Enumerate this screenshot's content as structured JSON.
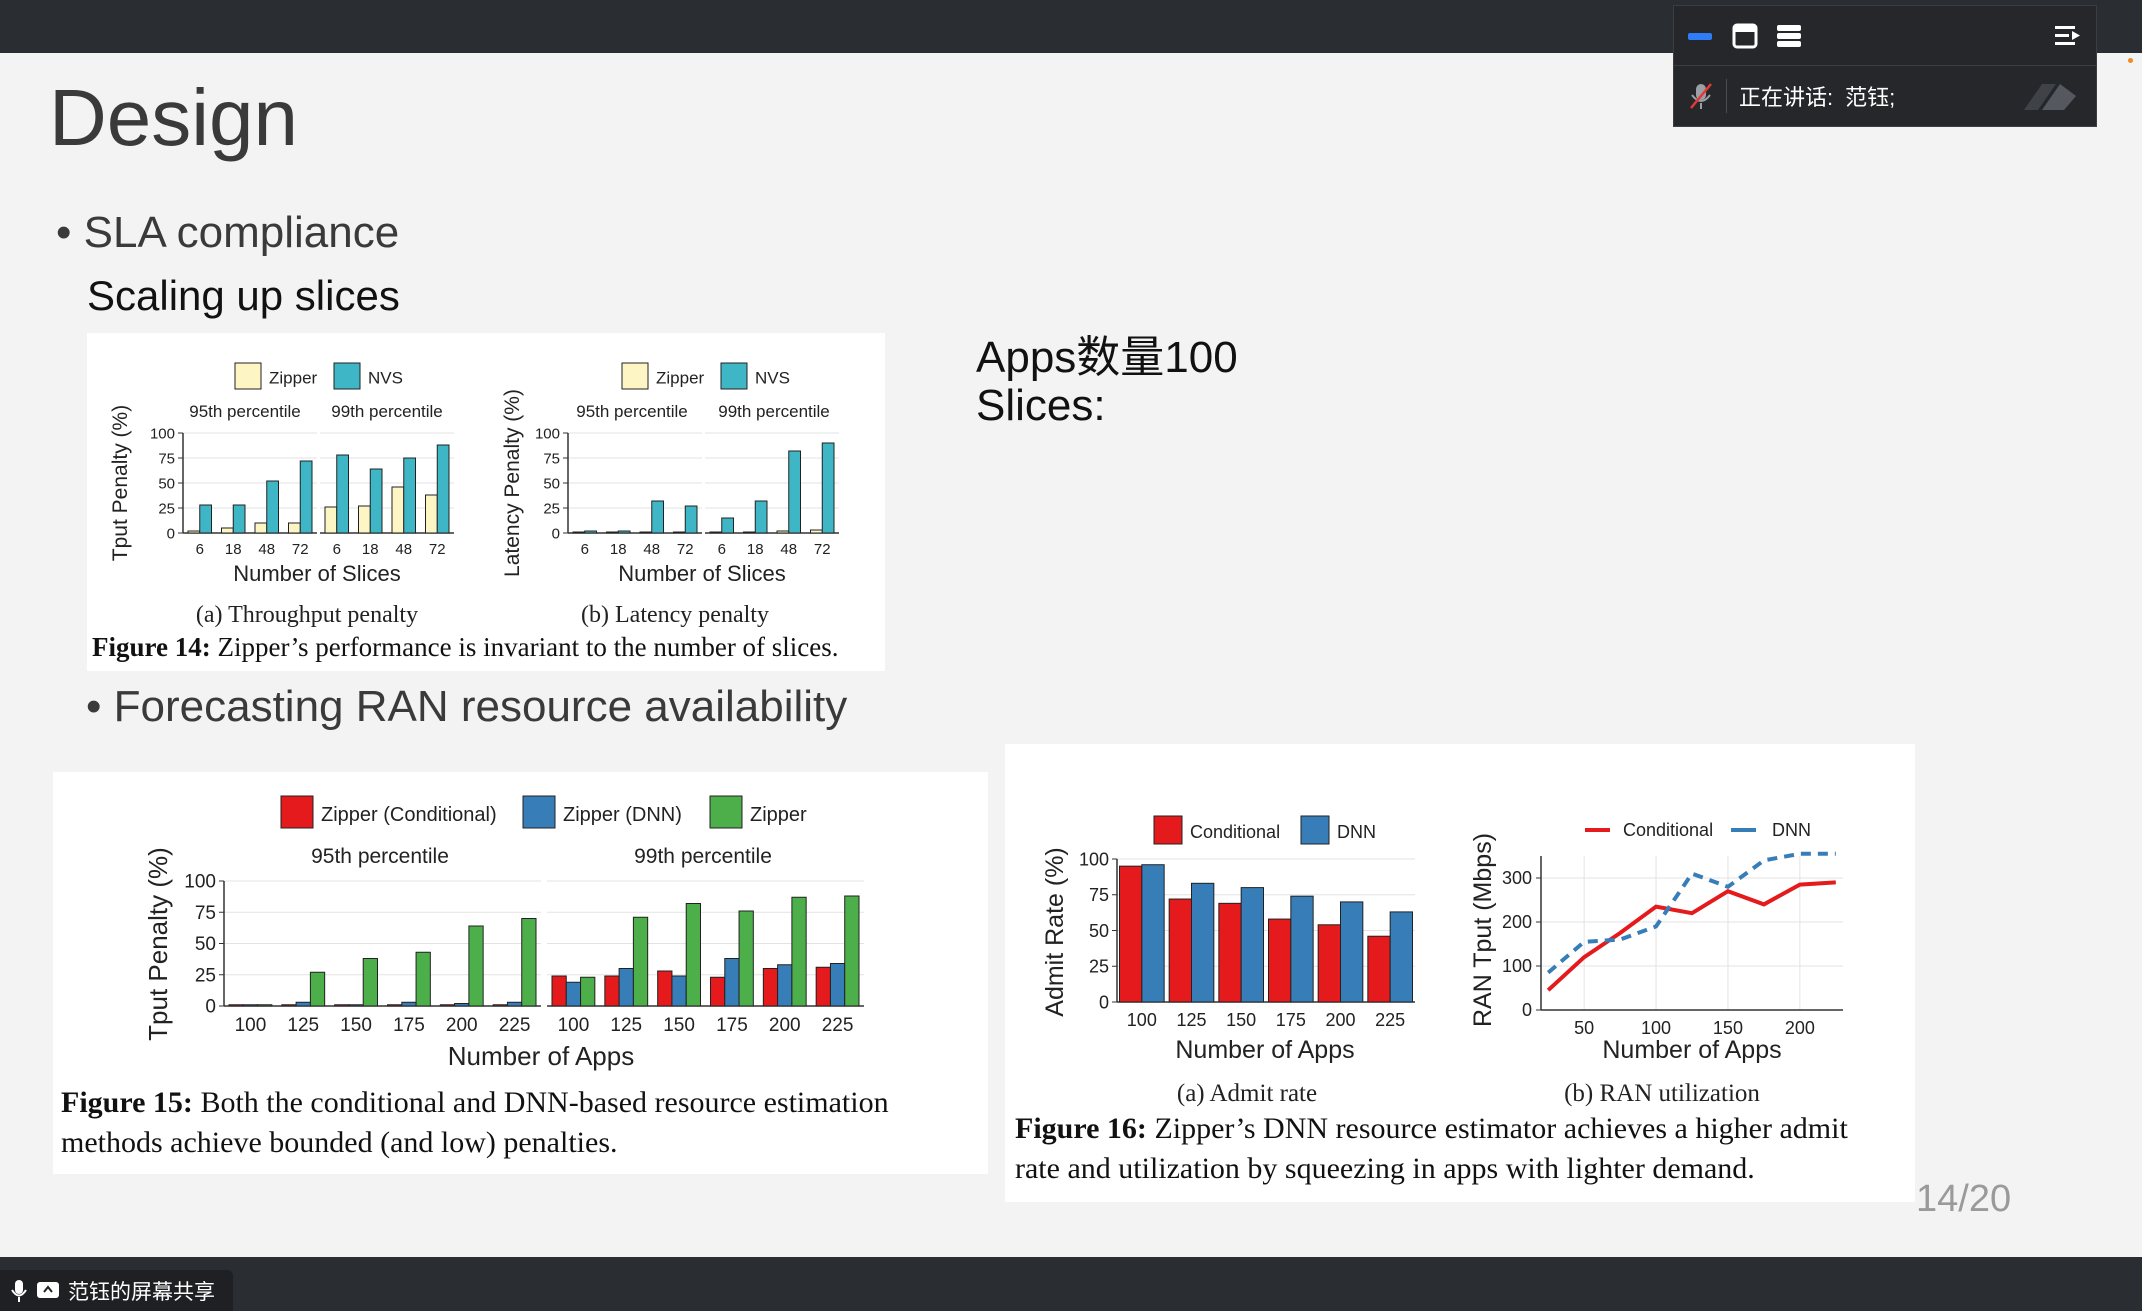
{
  "window": {
    "panel": {
      "speaker_label": "正在讲话:",
      "speaker_name": "范钰;"
    },
    "share_label": "范钰的屏幕共享",
    "colors": {
      "bar": "#2a2d31",
      "accent": "#2f7cf6"
    }
  },
  "slide": {
    "title": "Design",
    "bullet1": "SLA compliance",
    "sub1": "Scaling up slices",
    "note_line1": "Apps数量100",
    "note_line2": "Slices:",
    "bullet2": "Forecasting RAN resource availability",
    "page": "14/20"
  },
  "fig14": {
    "legend": [
      "Zipper",
      "NVS"
    ],
    "colors": {
      "Zipper": "#fdf5c4",
      "NVS": "#3fb6c6"
    },
    "panel_titles": [
      "95th percentile",
      "99th percentile"
    ],
    "categories": [
      "6",
      "18",
      "48",
      "72"
    ],
    "yticks": [
      "100",
      "75",
      "50",
      "25",
      "0"
    ],
    "xlabel": "Number of Slices",
    "a_ylabel": "Tput Penalty (%)",
    "b_ylabel": "Latency Penalty (%)",
    "a_caption": "(a) Throughput penalty",
    "b_caption": "(b) Latency penalty",
    "caption_bold": "Figure 14:",
    "caption_text": " Zipper’s performance is invariant to the number of slices."
  },
  "fig15": {
    "legend": [
      "Zipper (Conditional)",
      "Zipper (DNN)",
      "Zipper"
    ],
    "colors": {
      "cond": "#e41a1c",
      "dnn": "#377eb8",
      "zip": "#4daf4a"
    },
    "panel_titles": [
      "95th percentile",
      "99th percentile"
    ],
    "categories": [
      "100",
      "125",
      "150",
      "175",
      "200",
      "225"
    ],
    "yticks": [
      "100",
      "75",
      "50",
      "25",
      "0"
    ],
    "xlabel": "Number of Apps",
    "ylabel": "Tput Penalty (%)",
    "caption_bold": "Figure 15:",
    "caption_line1": " Both the conditional and DNN-based resource estimation",
    "caption_line2": "methods achieve bounded (and low) penalties."
  },
  "fig16": {
    "a_legend": [
      "Conditional",
      "DNN"
    ],
    "b_legend": [
      "Conditional",
      "DNN"
    ],
    "a_categories": [
      "100",
      "125",
      "150",
      "175",
      "200",
      "225"
    ],
    "a_yticks": [
      "100",
      "75",
      "50",
      "25",
      "0"
    ],
    "a_ylabel": "Admit Rate (%)",
    "b_yticks": [
      "300",
      "200",
      "100",
      "0"
    ],
    "b_xticks": [
      "50",
      "100",
      "150",
      "200"
    ],
    "b_ylabel": "RAN Tput (Mbps)",
    "xlabel": "Number of Apps",
    "a_caption": "(a) Admit rate",
    "b_caption": "(b) RAN utilization",
    "caption_bold": "Figure 16:",
    "caption_line1": " Zipper’s DNN resource estimator achieves a higher admit",
    "caption_line2": "rate and utilization by squeezing in apps with lighter demand."
  },
  "chart_data": [
    {
      "type": "bar",
      "title": "95th percentile",
      "ylabel": "Tput Penalty (%)",
      "xlabel": "Number of Slices",
      "categories": [
        "6",
        "18",
        "48",
        "72"
      ],
      "ylim": [
        0,
        100
      ],
      "series": [
        {
          "name": "Zipper",
          "values": [
            2,
            5,
            10,
            10
          ]
        },
        {
          "name": "NVS",
          "values": [
            28,
            28,
            52,
            72
          ]
        }
      ]
    },
    {
      "type": "bar",
      "title": "99th percentile",
      "ylabel": "Tput Penalty (%)",
      "xlabel": "Number of Slices",
      "categories": [
        "6",
        "18",
        "48",
        "72"
      ],
      "ylim": [
        0,
        100
      ],
      "series": [
        {
          "name": "Zipper",
          "values": [
            26,
            27,
            46,
            38
          ]
        },
        {
          "name": "NVS",
          "values": [
            78,
            64,
            75,
            88
          ]
        }
      ]
    },
    {
      "type": "bar",
      "title": "95th percentile",
      "ylabel": "Latency Penalty (%)",
      "xlabel": "Number of Slices",
      "categories": [
        "6",
        "18",
        "48",
        "72"
      ],
      "ylim": [
        0,
        100
      ],
      "series": [
        {
          "name": "Zipper",
          "values": [
            1,
            1,
            1,
            1
          ]
        },
        {
          "name": "NVS",
          "values": [
            2,
            2,
            32,
            27
          ]
        }
      ]
    },
    {
      "type": "bar",
      "title": "99th percentile",
      "ylabel": "Latency Penalty (%)",
      "xlabel": "Number of Slices",
      "categories": [
        "6",
        "18",
        "48",
        "72"
      ],
      "ylim": [
        0,
        100
      ],
      "series": [
        {
          "name": "Zipper",
          "values": [
            1,
            1,
            2,
            3
          ]
        },
        {
          "name": "NVS",
          "values": [
            15,
            32,
            82,
            90
          ]
        }
      ]
    },
    {
      "type": "bar",
      "title": "95th percentile",
      "ylabel": "Tput Penalty (%)",
      "xlabel": "Number of Apps",
      "categories": [
        "100",
        "125",
        "150",
        "175",
        "200",
        "225"
      ],
      "ylim": [
        0,
        100
      ],
      "series": [
        {
          "name": "Zipper (Conditional)",
          "values": [
            1,
            1,
            1,
            1,
            1,
            1
          ]
        },
        {
          "name": "Zipper (DNN)",
          "values": [
            1,
            3,
            1,
            3,
            2,
            3
          ]
        },
        {
          "name": "Zipper",
          "values": [
            1,
            27,
            38,
            43,
            64,
            70
          ]
        }
      ]
    },
    {
      "type": "bar",
      "title": "99th percentile",
      "ylabel": "Tput Penalty (%)",
      "xlabel": "Number of Apps",
      "categories": [
        "100",
        "125",
        "150",
        "175",
        "200",
        "225"
      ],
      "ylim": [
        0,
        100
      ],
      "series": [
        {
          "name": "Zipper (Conditional)",
          "values": [
            24,
            24,
            28,
            23,
            30,
            31
          ]
        },
        {
          "name": "Zipper (DNN)",
          "values": [
            19,
            30,
            24,
            38,
            33,
            34
          ]
        },
        {
          "name": "Zipper",
          "values": [
            23,
            71,
            82,
            76,
            87,
            88
          ]
        }
      ]
    },
    {
      "type": "bar",
      "ylabel": "Admit Rate (%)",
      "xlabel": "Number of Apps",
      "categories": [
        "100",
        "125",
        "150",
        "175",
        "200",
        "225"
      ],
      "ylim": [
        0,
        100
      ],
      "series": [
        {
          "name": "Conditional",
          "values": [
            95,
            72,
            69,
            58,
            54,
            46
          ]
        },
        {
          "name": "DNN",
          "values": [
            96,
            83,
            80,
            74,
            70,
            63
          ]
        }
      ]
    },
    {
      "type": "line",
      "ylabel": "RAN Tput (Mbps)",
      "xlabel": "Number of Apps",
      "xlim": [
        20,
        230
      ],
      "ylim": [
        0,
        350
      ],
      "series": [
        {
          "name": "Conditional",
          "x": [
            25,
            50,
            75,
            100,
            125,
            150,
            175,
            200,
            225
          ],
          "y": [
            45,
            120,
            175,
            235,
            220,
            270,
            240,
            285,
            290
          ]
        },
        {
          "name": "DNN",
          "x": [
            25,
            50,
            75,
            100,
            125,
            150,
            175,
            200,
            225
          ],
          "y": [
            85,
            155,
            160,
            190,
            310,
            280,
            340,
            355,
            355
          ]
        }
      ]
    }
  ]
}
